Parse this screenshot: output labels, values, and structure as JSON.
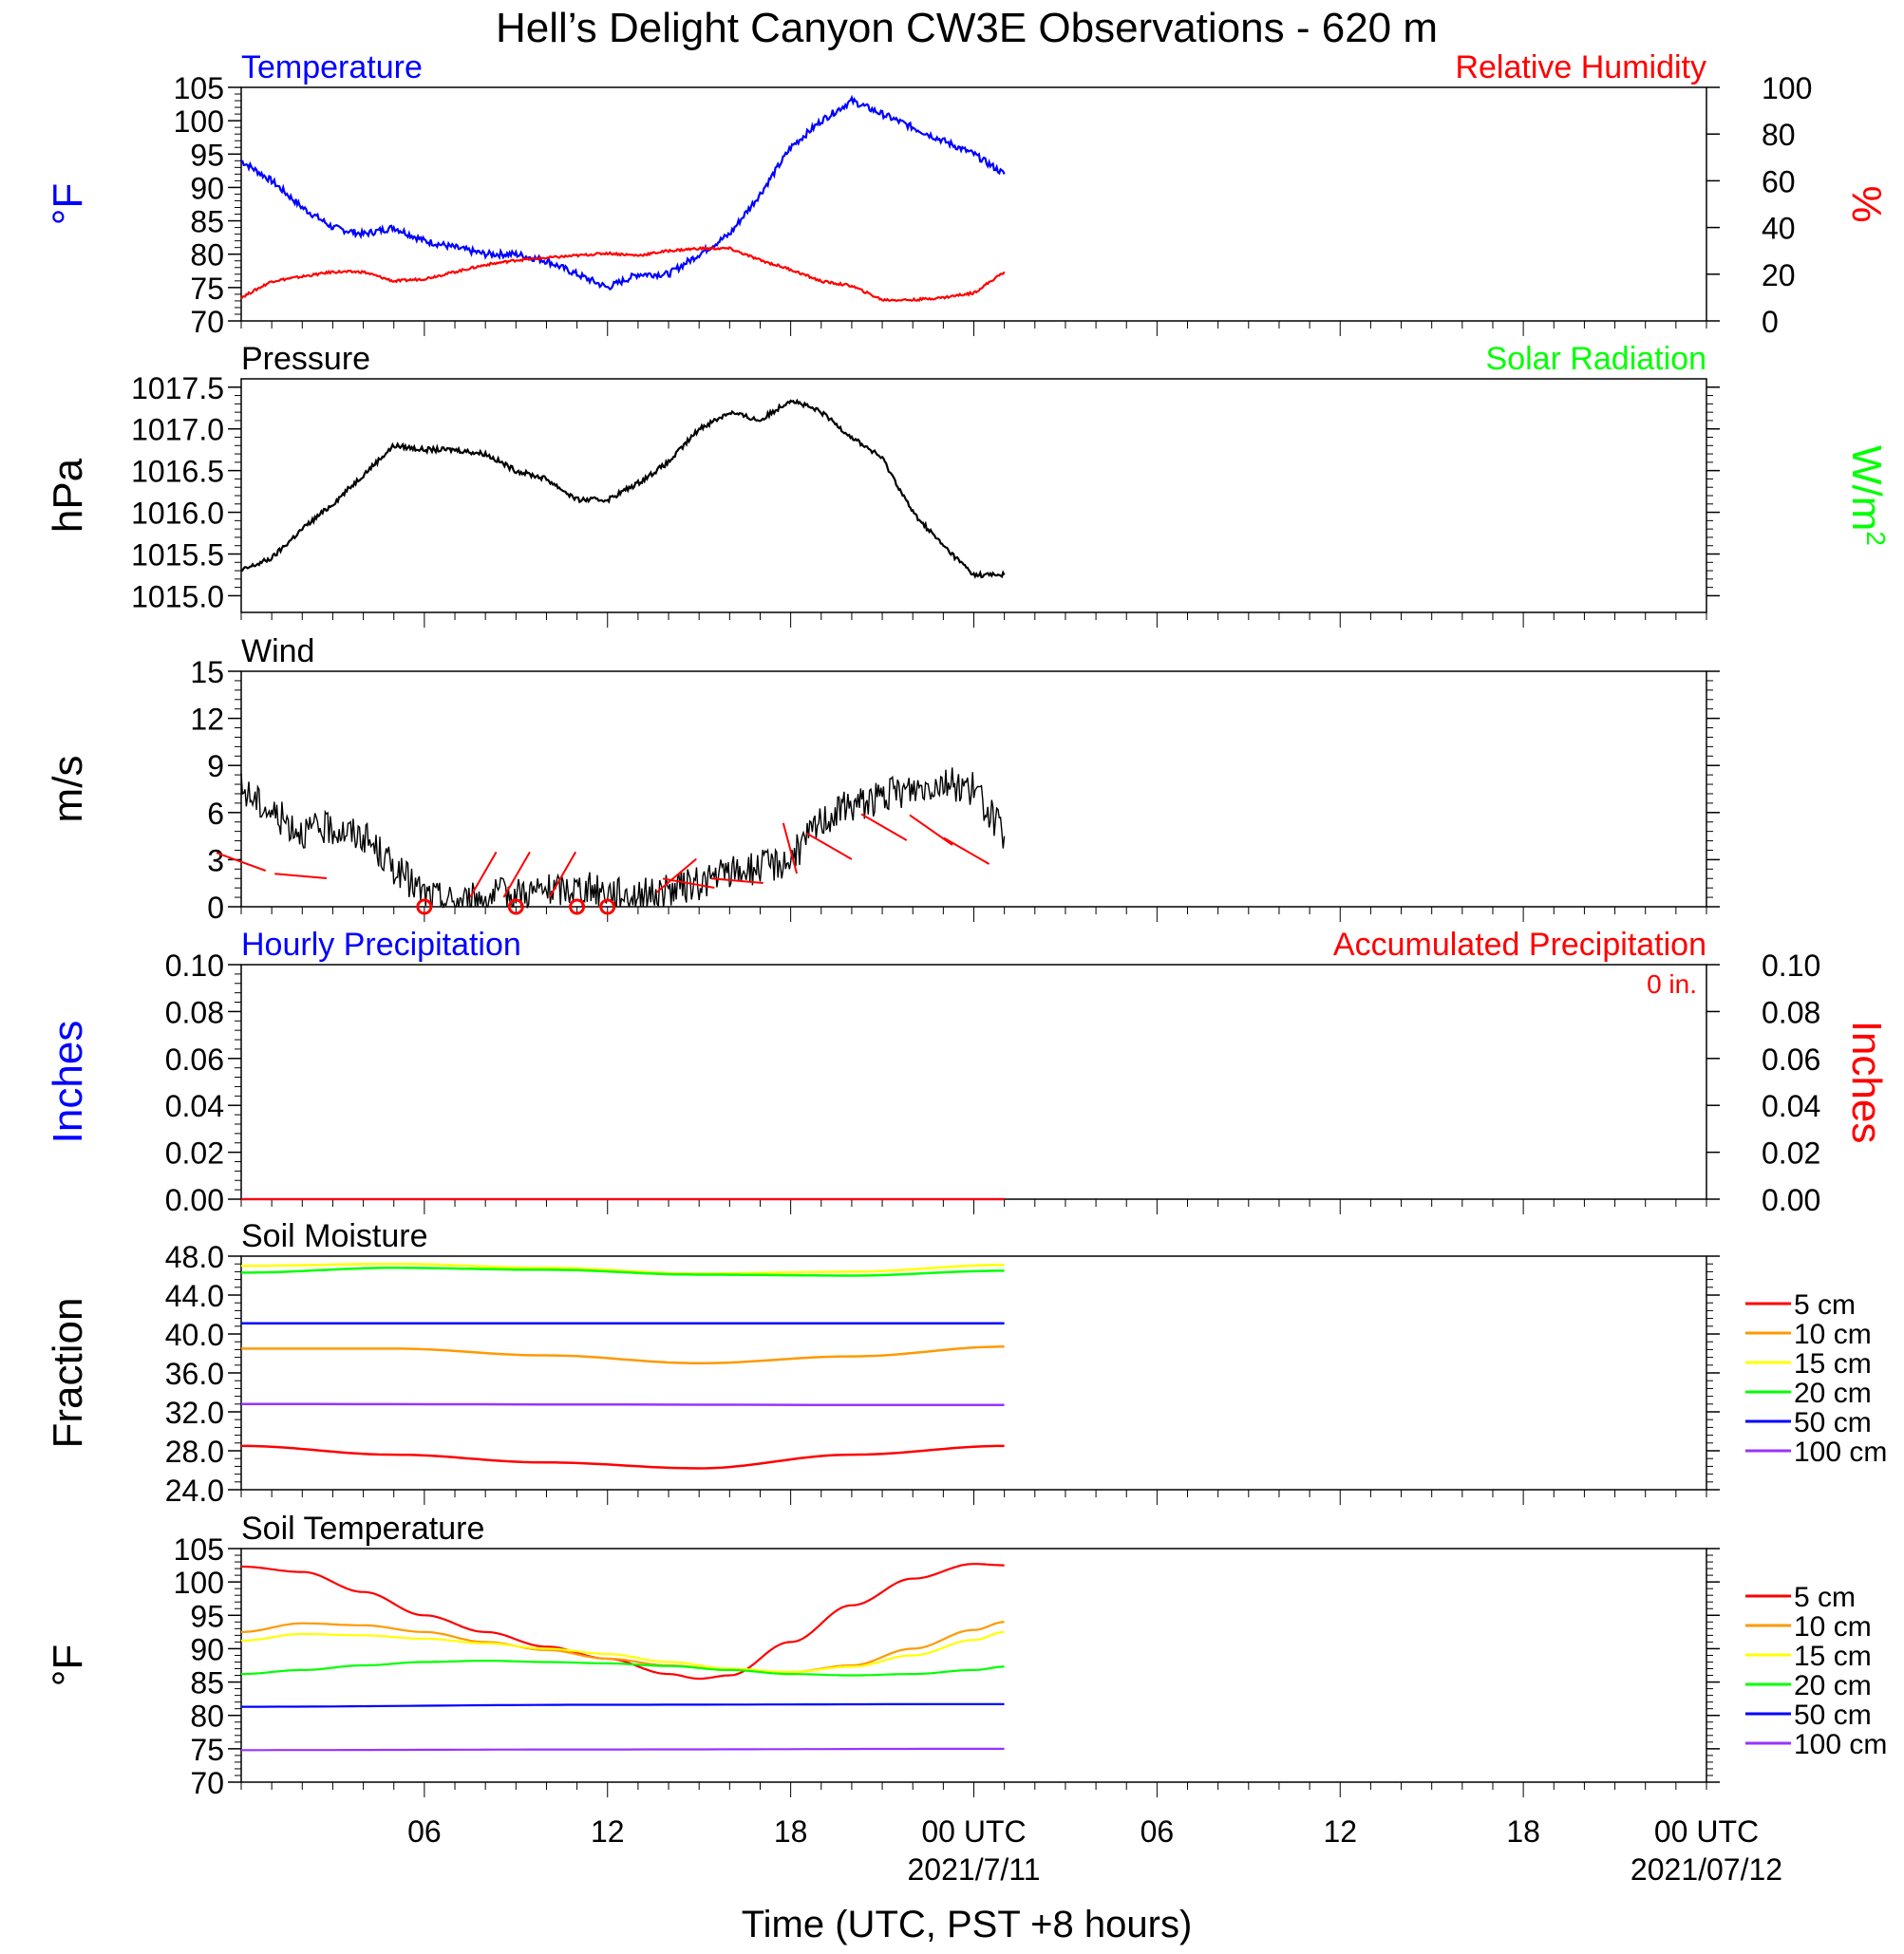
{
  "title": "Hell’s Delight Canyon CW3E Observations - 620 m",
  "xlabel": "Time (UTC, PST +8 hours)",
  "x_ticks": [
    "06",
    "12",
    "18",
    "00 UTC",
    "06",
    "12",
    "18",
    "00 UTC"
  ],
  "x_dates": [
    "2021/7/11",
    "2021/07/12"
  ],
  "chart_data": [
    {
      "type": "line",
      "panel": "temperature_humidity",
      "title_left": "Temperature",
      "title_right": "Relative Humidity",
      "ylabel_left": "°F",
      "ylabel_right": "%",
      "ylim_left": [
        70,
        105
      ],
      "ylim_right": [
        0,
        100
      ],
      "yticks_left": [
        "70",
        "75",
        "80",
        "85",
        "90",
        "95",
        "100",
        "105"
      ],
      "yticks_right": [
        "0",
        "20",
        "40",
        "60",
        "80",
        "100"
      ],
      "xlim_hours": [
        0,
        48
      ],
      "series": [
        {
          "name": "Temperature",
          "axis": "left",
          "color": "#0000ff",
          "x": [
            0,
            1,
            2,
            3,
            4,
            5,
            6,
            7,
            8,
            9,
            10,
            11,
            12,
            13,
            14,
            15,
            16,
            17,
            18,
            19,
            20,
            21,
            22,
            23,
            24,
            25
          ],
          "y": [
            94,
            91,
            87,
            84,
            83,
            84,
            82,
            81,
            80,
            80,
            79,
            77,
            75,
            77,
            77,
            80,
            83,
            89,
            96,
            100,
            103,
            101,
            99,
            97,
            95,
            92
          ]
        },
        {
          "name": "Relative Humidity",
          "axis": "right",
          "color": "#ff0000",
          "x": [
            0,
            1,
            2,
            3,
            4,
            5,
            6,
            7,
            8,
            9,
            10,
            11,
            12,
            13,
            14,
            15,
            16,
            17,
            18,
            19,
            20,
            21,
            22,
            23,
            24,
            25
          ],
          "y": [
            10,
            17,
            19,
            21,
            21,
            17,
            18,
            21,
            24,
            26,
            27,
            28,
            29,
            28,
            30,
            31,
            31,
            26,
            22,
            17,
            15,
            9,
            9,
            10,
            12,
            21
          ]
        }
      ]
    },
    {
      "type": "line",
      "panel": "pressure",
      "title_left": "Pressure",
      "title_right": "Solar Radiation",
      "ylabel_left": "hPa",
      "ylabel_right": "W/m",
      "ylabel_right_sup": "2",
      "ylim_left": [
        1014.8,
        1017.6
      ],
      "yticks_left": [
        "1015.0",
        "1015.5",
        "1016.0",
        "1016.5",
        "1017.0",
        "1017.5"
      ],
      "xlim_hours": [
        0,
        48
      ],
      "series": [
        {
          "name": "Pressure",
          "axis": "left",
          "color": "#000000",
          "x": [
            0,
            1,
            2,
            3,
            4,
            5,
            6,
            7,
            8,
            9,
            10,
            11,
            12,
            13,
            14,
            15,
            16,
            17,
            18,
            19,
            20,
            21,
            22,
            23,
            24,
            25
          ],
          "y": [
            1015.3,
            1015.45,
            1015.8,
            1016.1,
            1016.45,
            1016.8,
            1016.75,
            1016.75,
            1016.7,
            1016.5,
            1016.4,
            1016.15,
            1016.15,
            1016.35,
            1016.6,
            1017.0,
            1017.2,
            1017.1,
            1017.35,
            1017.2,
            1016.9,
            1016.65,
            1016.0,
            1015.6,
            1015.25,
            1015.25
          ]
        }
      ]
    },
    {
      "type": "line",
      "panel": "wind",
      "title_left": "Wind",
      "ylabel_left": "m/s",
      "ylim_left": [
        0,
        15
      ],
      "yticks_left": [
        "0",
        "3",
        "6",
        "9",
        "12",
        "15"
      ],
      "xlim_hours": [
        0,
        48
      ],
      "series": [
        {
          "name": "Wind Speed",
          "axis": "left",
          "color": "#000000",
          "x": [
            0,
            1,
            2,
            3,
            4,
            5,
            6,
            7,
            8,
            9,
            10,
            11,
            12,
            13,
            14,
            15,
            16,
            17,
            18,
            19,
            20,
            21,
            22,
            23,
            24,
            25
          ],
          "y": [
            7.5,
            6.0,
            4.8,
            5.0,
            4.5,
            2.5,
            0.8,
            0.3,
            0.6,
            0.9,
            1.0,
            1.2,
            1.0,
            0.7,
            1.0,
            1.5,
            2.2,
            2.5,
            3.0,
            5.5,
            6.5,
            7.0,
            7.5,
            8.0,
            7.5,
            4.5
          ]
        }
      ],
      "barbs": [
        {
          "x": 0.8,
          "speed": 3.8
        },
        {
          "x": 2.8,
          "speed": 3.0
        },
        {
          "x": 6.0,
          "speed": 0
        },
        {
          "x": 7.5,
          "speed": 1.0
        },
        {
          "x": 8.6,
          "speed": 1.0
        },
        {
          "x": 9.0,
          "speed": 0
        },
        {
          "x": 10.1,
          "speed": 1.0
        },
        {
          "x": 11.0,
          "speed": 0
        },
        {
          "x": 12.0,
          "speed": 0
        },
        {
          "x": 13.6,
          "speed": 1.5
        },
        {
          "x": 15.5,
          "speed": 2.0
        },
        {
          "x": 17.1,
          "speed": 2.5
        },
        {
          "x": 18.2,
          "speed": 3.5
        },
        {
          "x": 20.0,
          "speed": 5.0
        },
        {
          "x": 21.8,
          "speed": 7.0
        },
        {
          "x": 23.3,
          "speed": 6.5
        },
        {
          "x": 24.5,
          "speed": 4.5
        }
      ]
    },
    {
      "type": "line",
      "panel": "precipitation",
      "title_left": "Hourly Precipitation",
      "title_right": "Accumulated Precipitation",
      "annotation": "0 in.",
      "ylabel_left": "Inches",
      "ylabel_right": "Inches",
      "ylim_left": [
        0,
        0.1
      ],
      "ylim_right": [
        0,
        0.1
      ],
      "yticks_left": [
        "0.00",
        "0.02",
        "0.04",
        "0.06",
        "0.08",
        "0.10"
      ],
      "yticks_right": [
        "0.00",
        "0.02",
        "0.04",
        "0.06",
        "0.08",
        "0.10"
      ],
      "xlim_hours": [
        0,
        48
      ],
      "series": [
        {
          "name": "Hourly Precipitation",
          "axis": "left",
          "color": "#0000ff",
          "x": [
            0,
            25
          ],
          "y": [
            0,
            0
          ]
        },
        {
          "name": "Accumulated Precipitation",
          "axis": "right",
          "color": "#ff0000",
          "x": [
            0,
            25
          ],
          "y": [
            0,
            0
          ]
        }
      ]
    },
    {
      "type": "line",
      "panel": "soil_moisture",
      "title_left": "Soil Moisture",
      "ylabel_left": "Fraction",
      "ylim_left": [
        24,
        48
      ],
      "yticks_left": [
        "24.0",
        "28.0",
        "32.0",
        "36.0",
        "40.0",
        "44.0",
        "48.0"
      ],
      "xlim_hours": [
        0,
        48
      ],
      "legend": [
        "5 cm",
        "10 cm",
        "15 cm",
        "20 cm",
        "50 cm",
        "100 cm"
      ],
      "series": [
        {
          "name": "5 cm",
          "color": "#ff0000",
          "x": [
            0,
            5,
            10,
            15,
            20,
            25
          ],
          "y": [
            28.5,
            27.6,
            26.8,
            26.2,
            27.6,
            28.5
          ]
        },
        {
          "name": "10 cm",
          "color": "#ff9900",
          "x": [
            0,
            5,
            10,
            15,
            20,
            25
          ],
          "y": [
            38.5,
            38.5,
            37.8,
            37.0,
            37.7,
            38.7
          ]
        },
        {
          "name": "15 cm",
          "color": "#ffff00",
          "x": [
            0,
            5,
            10,
            15,
            20,
            25
          ],
          "y": [
            47.0,
            47.2,
            46.8,
            46.2,
            46.4,
            47.1
          ]
        },
        {
          "name": "20 cm",
          "color": "#00ff00",
          "x": [
            0,
            5,
            10,
            15,
            20,
            25
          ],
          "y": [
            46.3,
            46.8,
            46.6,
            46.1,
            46.0,
            46.5
          ]
        },
        {
          "name": "50 cm",
          "color": "#0000ff",
          "x": [
            0,
            25
          ],
          "y": [
            41.1,
            41.1
          ]
        },
        {
          "name": "100 cm",
          "color": "#9933ff",
          "x": [
            0,
            25
          ],
          "y": [
            32.8,
            32.7
          ]
        }
      ]
    },
    {
      "type": "line",
      "panel": "soil_temperature",
      "title_left": "Soil Temperature",
      "ylabel_left": "°F",
      "ylim_left": [
        70,
        105
      ],
      "yticks_left": [
        "70",
        "75",
        "80",
        "85",
        "90",
        "95",
        "100",
        "105"
      ],
      "xlim_hours": [
        0,
        48
      ],
      "legend": [
        "5 cm",
        "10 cm",
        "15 cm",
        "20 cm",
        "50 cm",
        "100 cm"
      ],
      "series": [
        {
          "name": "5 cm",
          "color": "#ff0000",
          "x": [
            0,
            2,
            4,
            6,
            8,
            10,
            12,
            14,
            15,
            16,
            18,
            20,
            22,
            24,
            25
          ],
          "y": [
            102.3,
            101.5,
            98.5,
            95.0,
            92.5,
            90.3,
            88.5,
            86.2,
            85.5,
            86.0,
            91.0,
            96.5,
            100.5,
            102.7,
            102.5
          ]
        },
        {
          "name": "10 cm",
          "color": "#ff9900",
          "x": [
            0,
            2,
            4,
            6,
            8,
            10,
            12,
            14,
            16,
            18,
            20,
            22,
            24,
            25
          ],
          "y": [
            92.5,
            93.8,
            93.5,
            92.5,
            91.0,
            89.8,
            88.5,
            87.5,
            86.8,
            86.5,
            87.5,
            90.0,
            92.8,
            94.0
          ]
        },
        {
          "name": "15 cm",
          "color": "#ffff00",
          "x": [
            0,
            2,
            4,
            6,
            8,
            10,
            12,
            14,
            16,
            18,
            20,
            22,
            24,
            25
          ],
          "y": [
            91.2,
            92.2,
            92.0,
            91.5,
            90.8,
            90.0,
            89.2,
            88.0,
            87.0,
            86.5,
            87.3,
            89.0,
            91.3,
            92.5
          ]
        },
        {
          "name": "20 cm",
          "color": "#00ff00",
          "x": [
            0,
            2,
            4,
            6,
            8,
            10,
            12,
            14,
            16,
            18,
            20,
            22,
            24,
            25
          ],
          "y": [
            86.2,
            86.8,
            87.5,
            88.0,
            88.2,
            88.0,
            87.8,
            87.4,
            86.8,
            86.2,
            86.0,
            86.2,
            86.8,
            87.3
          ]
        },
        {
          "name": "50 cm",
          "color": "#0000ff",
          "x": [
            0,
            12,
            25
          ],
          "y": [
            81.3,
            81.6,
            81.7
          ]
        },
        {
          "name": "100 cm",
          "color": "#9933ff",
          "x": [
            0,
            12,
            25
          ],
          "y": [
            74.8,
            74.9,
            75.0
          ]
        }
      ]
    }
  ]
}
